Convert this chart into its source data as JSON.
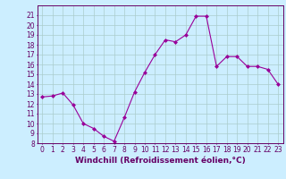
{
  "x": [
    0,
    1,
    2,
    3,
    4,
    5,
    6,
    7,
    8,
    9,
    10,
    11,
    12,
    13,
    14,
    15,
    16,
    17,
    18,
    19,
    20,
    21,
    22,
    23
  ],
  "y": [
    12.7,
    12.8,
    13.1,
    11.9,
    10.0,
    9.5,
    8.7,
    8.2,
    10.6,
    13.2,
    15.2,
    17.0,
    18.5,
    18.3,
    19.0,
    20.9,
    20.9,
    15.8,
    16.8,
    16.8,
    15.8,
    15.8,
    15.5,
    14.0
  ],
  "line_color": "#990099",
  "marker": "D",
  "marker_size": 2,
  "bg_color": "#cceeff",
  "grid_color": "#aacccc",
  "xlabel": "Windchill (Refroidissement éolien,°C)",
  "xlabel_fontsize": 6.5,
  "tick_fontsize": 5.5,
  "ylim": [
    8,
    22
  ],
  "yticks": [
    8,
    9,
    10,
    11,
    12,
    13,
    14,
    15,
    16,
    17,
    18,
    19,
    20,
    21
  ],
  "xlim": [
    -0.5,
    23.5
  ],
  "xticks": [
    0,
    1,
    2,
    3,
    4,
    5,
    6,
    7,
    8,
    9,
    10,
    11,
    12,
    13,
    14,
    15,
    16,
    17,
    18,
    19,
    20,
    21,
    22,
    23
  ]
}
